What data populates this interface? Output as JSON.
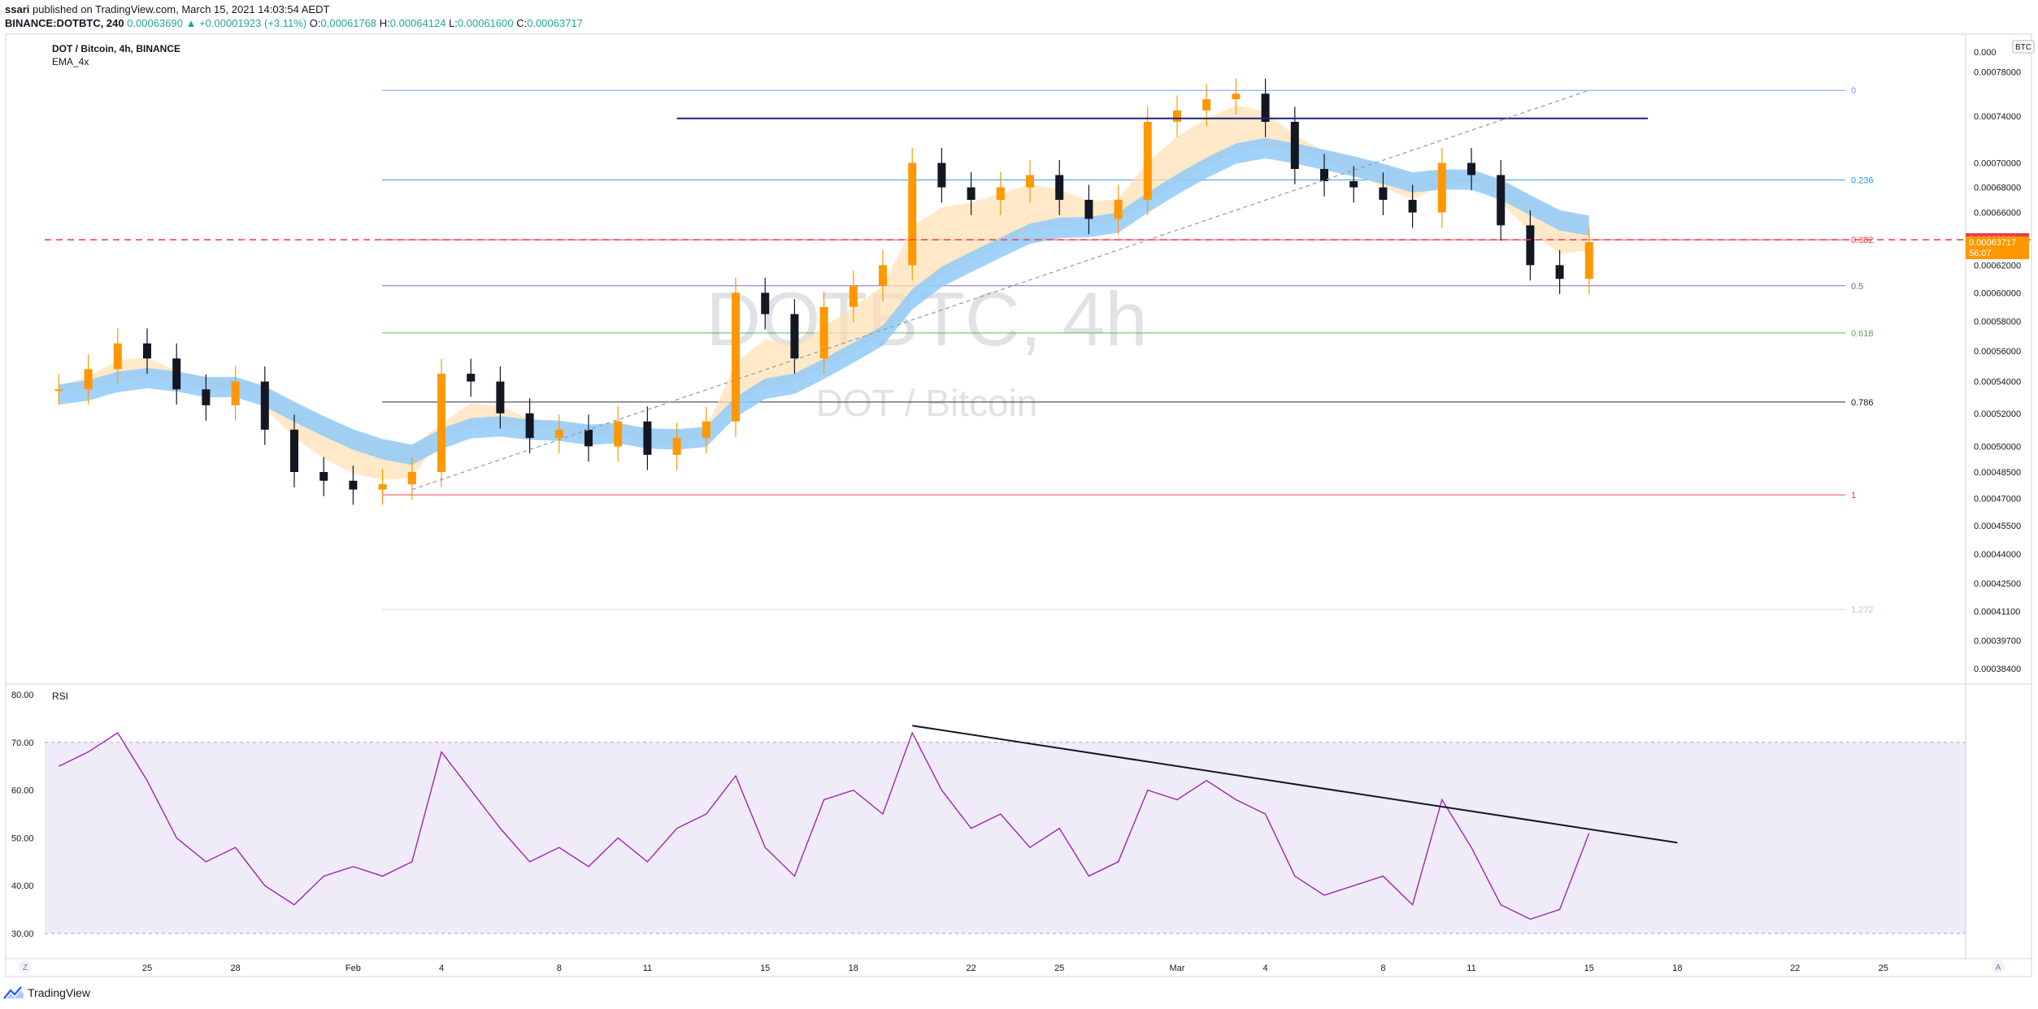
{
  "header": {
    "publisher": "ssari",
    "published_text": "published on TradingView.com, March 15, 2021 14:03:54 AEDT",
    "symbol_line_prefix": "BINANCE:DOTBTC, 240",
    "last": "0.00063690",
    "arrow": "▲",
    "change": "+0.00001923 (+3.11%)",
    "o_label": "O:",
    "o": "0.00061768",
    "h_label": "H:",
    "h": "0.00064124",
    "l_label": "L:",
    "l": "0.00061600",
    "c_label": "C:",
    "c": "0.00063717"
  },
  "chart_data": [
    {
      "type": "candlestick",
      "title": "DOT / Bitcoin, 4h, BINANCE",
      "indicator_label": "EMA_4x",
      "watermark": "DOTBTC, 4h",
      "watermark_sub": "DOT / Bitcoin",
      "currency_badge": "BTC",
      "y_axis_ticks": [
        "0.00078000",
        "0.00074000",
        "0.00070000",
        "0.00068000",
        "0.00066000",
        "0.00064000",
        "0.00062000",
        "0.00060000",
        "0.00058000",
        "0.00056000",
        "0.00054000",
        "0.00052000",
        "0.00050000",
        "0.00048500",
        "0.00047000",
        "0.00045500",
        "0.00044000",
        "0.00042500",
        "0.00041100",
        "0.00039700",
        "0.00038400"
      ],
      "y_axis_top_clipped": "0.000",
      "ylim": [
        0.000377,
        0.000823
      ],
      "y_scale": "log",
      "x_axis_ticks": [
        "25",
        "28",
        "Feb",
        "4",
        "8",
        "11",
        "15",
        "18",
        "22",
        "25",
        "Mar",
        "4",
        "8",
        "11",
        "15",
        "18",
        "22",
        "25"
      ],
      "price_labels": [
        {
          "text": "0.00063960",
          "value": 0.0006396,
          "color": "#f23645"
        },
        {
          "text": "0.00063717",
          "value": 0.00063717,
          "color": "#ff9800",
          "countdown": "56:07"
        }
      ],
      "horizontal_red_dashed_line": 0.000639,
      "fib_levels": [
        {
          "label": "0",
          "value": 0.000763,
          "color": "#5b9cf6"
        },
        {
          "label": "0.236",
          "value": 0.000686,
          "color": "#2196f3"
        },
        {
          "label": "0.382",
          "value": 0.000639,
          "color": "#f23645"
        },
        {
          "label": "0.5",
          "value": 0.000605,
          "color": "#7e57c2"
        },
        {
          "label": "0.618",
          "value": 0.000572,
          "color": "#4caf50"
        },
        {
          "label": "0.786",
          "value": 0.000527,
          "color": "#131722"
        },
        {
          "label": "1",
          "value": 0.000472,
          "color": "#f23645"
        },
        {
          "label": "1.272",
          "value": 0.000412,
          "color": "#b2c7e8"
        }
      ],
      "resistance_line": {
        "value": 0.000738,
        "from_date": "Feb 12",
        "to_date": "Mar 17"
      },
      "trend_line_dashed": {
        "from": [
          "Feb 3",
          0.000475
        ],
        "to": [
          "Mar 15",
          0.000763
        ]
      },
      "series": [
        {
          "name": "DOTBTC",
          "ohlc_approx": [
            [
              "Jan 22",
              0.000535
            ],
            [
              "Jan 23",
              0.000548
            ],
            [
              "Jan 24",
              0.000565
            ],
            [
              "Jan 25",
              0.000555
            ],
            [
              "Jan 26",
              0.000535
            ],
            [
              "Jan 27",
              0.000525
            ],
            [
              "Jan 28",
              0.00054
            ],
            [
              "Jan 29",
              0.00051
            ],
            [
              "Jan 30",
              0.000485
            ],
            [
              "Jan 31",
              0.00048
            ],
            [
              "Feb 1",
              0.000475
            ],
            [
              "Feb 2",
              0.000478
            ],
            [
              "Feb 3",
              0.000485
            ],
            [
              "Feb 4",
              0.000545
            ],
            [
              "Feb 5",
              0.00054
            ],
            [
              "Feb 6",
              0.00052
            ],
            [
              "Feb 7",
              0.000505
            ],
            [
              "Feb 8",
              0.00051
            ],
            [
              "Feb 9",
              0.0005
            ],
            [
              "Feb 10",
              0.000515
            ],
            [
              "Feb 11",
              0.000495
            ],
            [
              "Feb 12",
              0.000505
            ],
            [
              "Feb 13",
              0.000515
            ],
            [
              "Feb 14",
              0.0006
            ],
            [
              "Feb 15",
              0.000585
            ],
            [
              "Feb 16",
              0.000555
            ],
            [
              "Feb 17",
              0.00059
            ],
            [
              "Feb 18",
              0.000605
            ],
            [
              "Feb 19",
              0.00062
            ],
            [
              "Feb 20",
              0.0007
            ],
            [
              "Feb 21",
              0.00068
            ],
            [
              "Feb 22",
              0.00067
            ],
            [
              "Feb 23",
              0.00068
            ],
            [
              "Feb 24",
              0.00069
            ],
            [
              "Feb 25",
              0.00067
            ],
            [
              "Feb 26",
              0.000655
            ],
            [
              "Feb 27",
              0.00067
            ],
            [
              "Feb 28",
              0.000735
            ],
            [
              "Mar 1",
              0.000745
            ],
            [
              "Mar 2",
              0.000755
            ],
            [
              "Mar 3",
              0.00076
            ],
            [
              "Mar 4",
              0.000735
            ],
            [
              "Mar 5",
              0.000695
            ],
            [
              "Mar 6",
              0.000685
            ],
            [
              "Mar 7",
              0.00068
            ],
            [
              "Mar 8",
              0.00067
            ],
            [
              "Mar 9",
              0.00066
            ],
            [
              "Mar 10",
              0.0007
            ],
            [
              "Mar 11",
              0.00069
            ],
            [
              "Mar 12",
              0.00065
            ],
            [
              "Mar 13",
              0.00062
            ],
            [
              "Mar 14",
              0.00061
            ],
            [
              "Mar 15",
              0.00063717
            ]
          ]
        }
      ]
    },
    {
      "type": "line",
      "title": "RSI",
      "y_axis_ticks": [
        "80.00",
        "70.00",
        "60.00",
        "50.00",
        "40.00",
        "30.00"
      ],
      "ylim": [
        27,
        82
      ],
      "band": [
        30,
        70
      ],
      "trend_line": {
        "from": [
          "Feb 20",
          73.5
        ],
        "to": [
          "Mar 18",
          49
        ]
      },
      "series": [
        {
          "values_approx": [
            [
              "Jan 22",
              65
            ],
            [
              "Jan 23",
              68
            ],
            [
              "Jan 24",
              72
            ],
            [
              "Jan 25",
              62
            ],
            [
              "Jan 26",
              50
            ],
            [
              "Jan 27",
              45
            ],
            [
              "Jan 28",
              48
            ],
            [
              "Jan 29",
              40
            ],
            [
              "Jan 30",
              36
            ],
            [
              "Jan 31",
              42
            ],
            [
              "Feb 1",
              44
            ],
            [
              "Feb 2",
              42
            ],
            [
              "Feb 3",
              45
            ],
            [
              "Feb 4",
              68
            ],
            [
              "Feb 5",
              60
            ],
            [
              "Feb 6",
              52
            ],
            [
              "Feb 7",
              45
            ],
            [
              "Feb 8",
              48
            ],
            [
              "Feb 9",
              44
            ],
            [
              "Feb 10",
              50
            ],
            [
              "Feb 11",
              45
            ],
            [
              "Feb 12",
              52
            ],
            [
              "Feb 13",
              55
            ],
            [
              "Feb 14",
              63
            ],
            [
              "Feb 15",
              48
            ],
            [
              "Feb 16",
              42
            ],
            [
              "Feb 17",
              58
            ],
            [
              "Feb 18",
              60
            ],
            [
              "Feb 19",
              55
            ],
            [
              "Feb 20",
              72
            ],
            [
              "Feb 21",
              60
            ],
            [
              "Feb 22",
              52
            ],
            [
              "Feb 23",
              55
            ],
            [
              "Feb 24",
              48
            ],
            [
              "Feb 25",
              52
            ],
            [
              "Feb 26",
              42
            ],
            [
              "Feb 27",
              45
            ],
            [
              "Feb 28",
              60
            ],
            [
              "Mar 1",
              58
            ],
            [
              "Mar 2",
              62
            ],
            [
              "Mar 3",
              58
            ],
            [
              "Mar 4",
              55
            ],
            [
              "Mar 5",
              42
            ],
            [
              "Mar 6",
              38
            ],
            [
              "Mar 7",
              40
            ],
            [
              "Mar 8",
              42
            ],
            [
              "Mar 9",
              36
            ],
            [
              "Mar 10",
              58
            ],
            [
              "Mar 11",
              48
            ],
            [
              "Mar 12",
              36
            ],
            [
              "Mar 13",
              33
            ],
            [
              "Mar 14",
              35
            ],
            [
              "Mar 15",
              51
            ]
          ]
        }
      ]
    }
  ],
  "footer": {
    "brand": "TradingView",
    "left_button": "Z",
    "right_button": "A"
  }
}
